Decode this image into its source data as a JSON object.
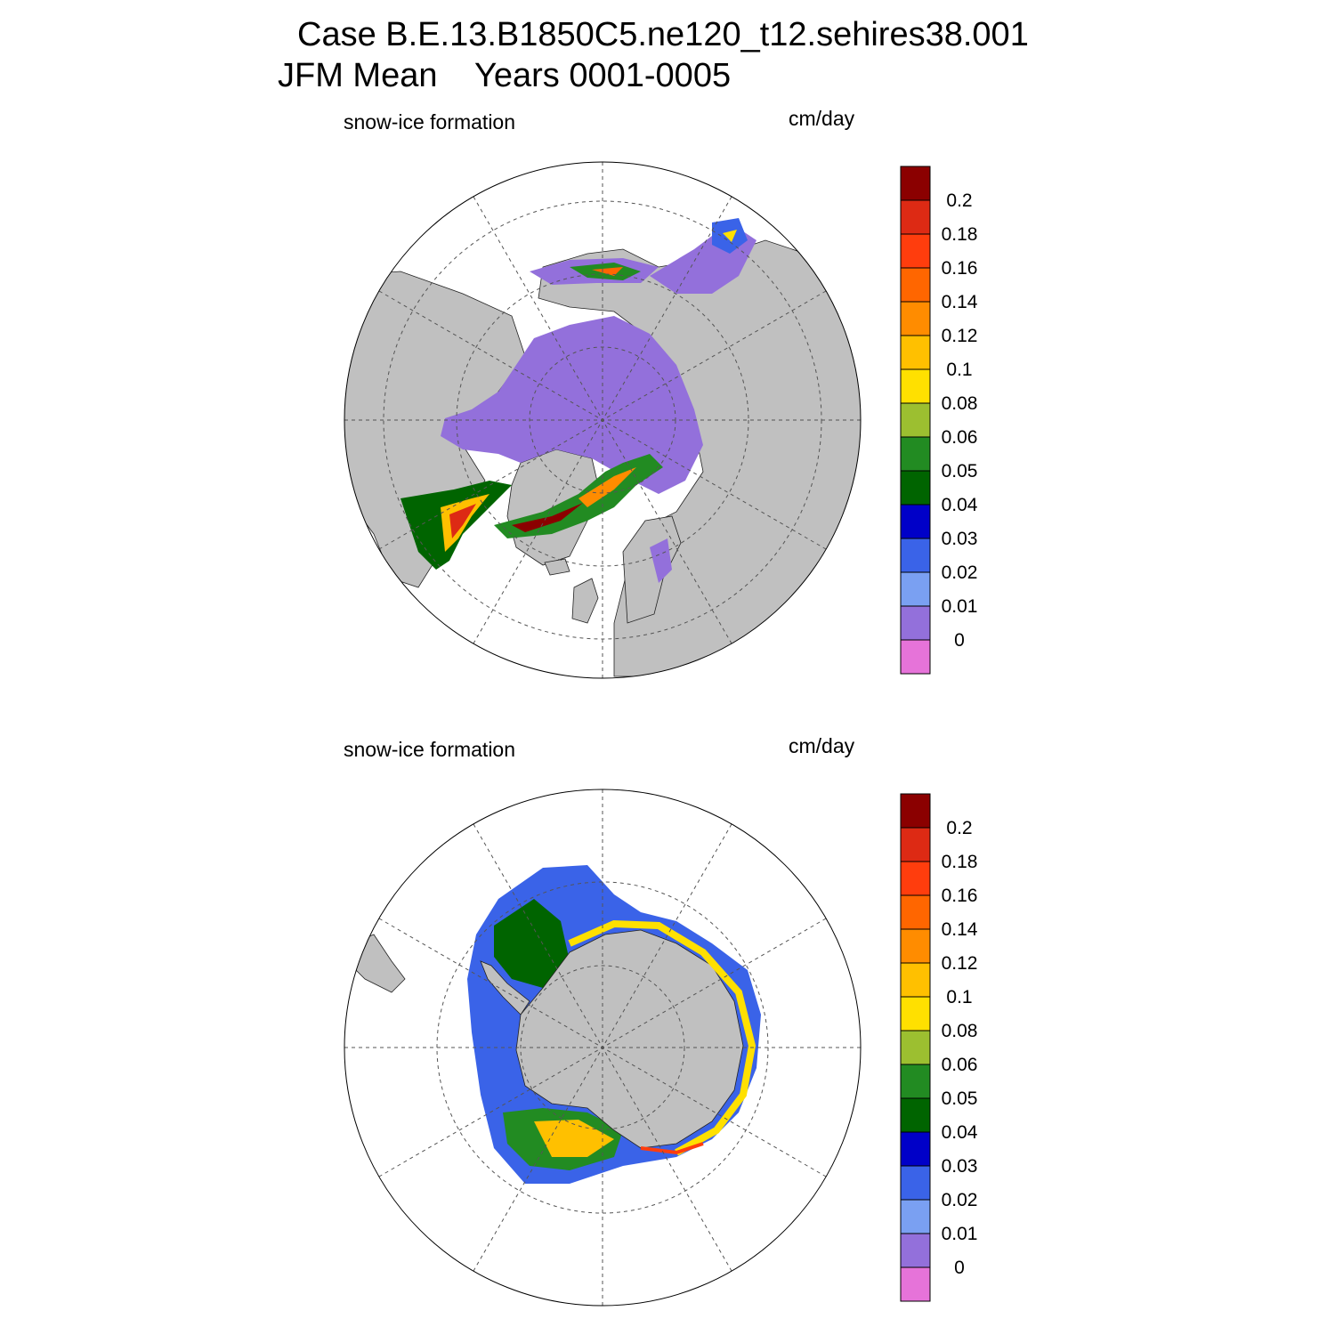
{
  "title_line1": "Case B.E.13.B1850C5.ne120_t12.sehires38.001",
  "title_line2": "JFM Mean    Years 0001-0005",
  "panels": [
    {
      "variable": "snow-ice formation",
      "units": "cm/day",
      "hemisphere": "north-polar-stereographic"
    },
    {
      "variable": "snow-ice formation",
      "units": "cm/day",
      "hemisphere": "south-polar-stereographic"
    }
  ],
  "colorbar": {
    "labels": [
      "0.2",
      "0.18",
      "0.16",
      "0.14",
      "0.12",
      "0.1",
      "0.08",
      "0.06",
      "0.05",
      "0.04",
      "0.03",
      "0.02",
      "0.01",
      "0"
    ],
    "levels": [
      0,
      0.01,
      0.02,
      0.03,
      0.04,
      0.05,
      0.06,
      0.08,
      0.1,
      0.12,
      0.14,
      0.16,
      0.18,
      0.2
    ],
    "colors": [
      "#8b0000",
      "#dd2a14",
      "#ff3d0d",
      "#ff6600",
      "#ff8c00",
      "#ffc000",
      "#ffe000",
      "#9cbf30",
      "#228b22",
      "#006400",
      "#0000c8",
      "#3a63e8",
      "#7aa0f2",
      "#9370db",
      "#e673d9"
    ]
  },
  "colors": {
    "land": "#c0c0c0",
    "ocean": "#ffffff",
    "grid": "#555555"
  }
}
